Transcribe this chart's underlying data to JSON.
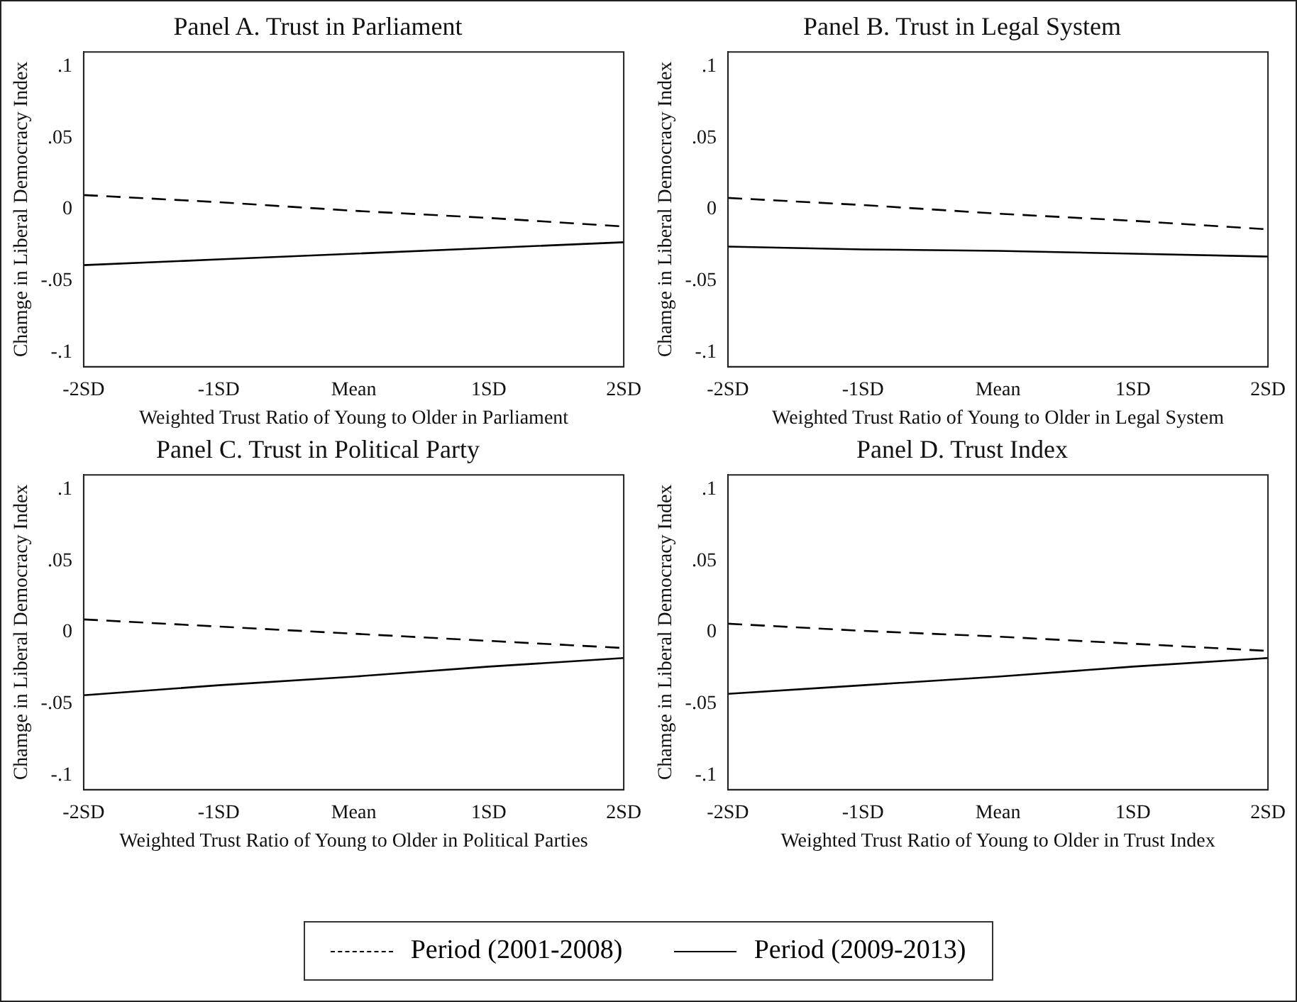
{
  "chart_data": [
    {
      "type": "line",
      "title": "Panel A. Trust in Parliament",
      "xlabel": "Weighted Trust Ratio of Young to Older in Parliament",
      "ylabel": "Chamge in Liberal Democracy Index",
      "categories": [
        "-2SD",
        "-1SD",
        "Mean",
        "1SD",
        "2SD"
      ],
      "ylim": [
        -0.11,
        0.11
      ],
      "yticks": [
        {
          "value": -0.1,
          "label": "-.1"
        },
        {
          "value": -0.05,
          "label": "-.05"
        },
        {
          "value": 0,
          "label": "0"
        },
        {
          "value": 0.05,
          "label": ".05"
        },
        {
          "value": 0.1,
          "label": ".1"
        }
      ],
      "grid": false,
      "legend": "bottom",
      "series": [
        {
          "name": "Period (2001-2008)",
          "color": "#000000",
          "line_style": "dashed",
          "values": [
            0.01,
            0.005,
            -0.001,
            -0.006,
            -0.012
          ]
        },
        {
          "name": "Period (2009-2013)",
          "color": "#000000",
          "line_style": "solid",
          "values": [
            -0.039,
            -0.035,
            -0.031,
            -0.027,
            -0.023
          ]
        }
      ]
    },
    {
      "type": "line",
      "title": "Panel B. Trust in Legal System",
      "xlabel": "Weighted Trust Ratio of Young to Older in Legal System",
      "ylabel": "Chamge in Liberal Democracy Index",
      "categories": [
        "-2SD",
        "-1SD",
        "Mean",
        "1SD",
        "2SD"
      ],
      "ylim": [
        -0.11,
        0.11
      ],
      "yticks": [
        {
          "value": -0.1,
          "label": "-.1"
        },
        {
          "value": -0.05,
          "label": "-.05"
        },
        {
          "value": 0,
          "label": "0"
        },
        {
          "value": 0.05,
          "label": ".05"
        },
        {
          "value": 0.1,
          "label": ".1"
        }
      ],
      "grid": false,
      "series": [
        {
          "color": "#000000",
          "line_style": "dashed",
          "values": [
            0.008,
            0.003,
            -0.003,
            -0.008,
            -0.014
          ]
        },
        {
          "color": "#000000",
          "line_style": "solid",
          "values": [
            -0.026,
            -0.028,
            -0.029,
            -0.031,
            -0.033
          ]
        }
      ]
    },
    {
      "type": "line",
      "title": "Panel C. Trust in Political Party",
      "xlabel": "Weighted Trust Ratio of Young to Older in Political Parties",
      "ylabel": "Chamge in Liberal Democracy Index",
      "categories": [
        "-2SD",
        "-1SD",
        "Mean",
        "1SD",
        "2SD"
      ],
      "ylim": [
        -0.11,
        0.11
      ],
      "yticks": [
        {
          "value": -0.1,
          "label": "-.1"
        },
        {
          "value": -0.05,
          "label": "-.05"
        },
        {
          "value": 0,
          "label": "0"
        },
        {
          "value": 0.05,
          "label": ".05"
        },
        {
          "value": 0.1,
          "label": ".1"
        }
      ],
      "grid": false,
      "series": [
        {
          "color": "#000000",
          "line_style": "dashed",
          "values": [
            0.009,
            0.004,
            -0.001,
            -0.006,
            -0.011
          ]
        },
        {
          "color": "#000000",
          "line_style": "solid",
          "values": [
            -0.044,
            -0.037,
            -0.031,
            -0.024,
            -0.018
          ]
        }
      ]
    },
    {
      "type": "line",
      "title": "Panel D. Trust Index",
      "xlabel": "Weighted Trust Ratio of Young to Older in Trust Index",
      "ylabel": "Chamge in Liberal Democracy Index",
      "categories": [
        "-2SD",
        "-1SD",
        "Mean",
        "1SD",
        "2SD"
      ],
      "ylim": [
        -0.11,
        0.11
      ],
      "yticks": [
        {
          "value": -0.1,
          "label": "-.1"
        },
        {
          "value": -0.05,
          "label": "-.05"
        },
        {
          "value": 0,
          "label": "0"
        },
        {
          "value": 0.05,
          "label": ".05"
        },
        {
          "value": 0.1,
          "label": ".1"
        }
      ],
      "grid": false,
      "series": [
        {
          "color": "#000000",
          "line_style": "dashed",
          "values": [
            0.006,
            0.001,
            -0.003,
            -0.008,
            -0.013
          ]
        },
        {
          "color": "#000000",
          "line_style": "solid",
          "values": [
            -0.043,
            -0.037,
            -0.031,
            -0.024,
            -0.018
          ]
        }
      ]
    }
  ]
}
